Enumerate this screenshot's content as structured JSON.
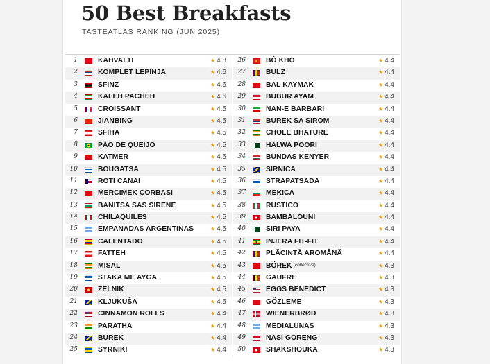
{
  "header": {
    "title": "50 Best Breakfasts",
    "subtitle": "TASTEATLAS RANKING (JUN 2025)"
  },
  "star_color": "#e5a00d",
  "ranking": [
    {
      "rank": "1",
      "name": "KAHVALTI",
      "rating": "4.8",
      "flag": "turkey"
    },
    {
      "rank": "2",
      "name": "KOMPLET LEPINJA",
      "rating": "4.6",
      "flag": "serbia"
    },
    {
      "rank": "3",
      "name": "SFINZ",
      "rating": "4.6",
      "flag": "libya"
    },
    {
      "rank": "4",
      "name": "KALEH PACHEH",
      "rating": "4.6",
      "flag": "iran"
    },
    {
      "rank": "5",
      "name": "CROISSANT",
      "rating": "4.5",
      "flag": "france"
    },
    {
      "rank": "6",
      "name": "JIANBING",
      "rating": "4.5",
      "flag": "china"
    },
    {
      "rank": "7",
      "name": "SFIHA",
      "rating": "4.5",
      "flag": "lebanon"
    },
    {
      "rank": "8",
      "name": "PÃO DE QUEIJO",
      "rating": "4.5",
      "flag": "brazil"
    },
    {
      "rank": "9",
      "name": "KATMER",
      "rating": "4.5",
      "flag": "turkey"
    },
    {
      "rank": "10",
      "name": "BOUGATSA",
      "rating": "4.5",
      "flag": "greece"
    },
    {
      "rank": "11",
      "name": "ROTI CANAI",
      "rating": "4.5",
      "flag": "malaysia"
    },
    {
      "rank": "12",
      "name": "MERCIMEK ÇORBASI",
      "rating": "4.5",
      "flag": "turkey"
    },
    {
      "rank": "13",
      "name": "BANITSA SAS SIRENE",
      "rating": "4.5",
      "flag": "bulgaria"
    },
    {
      "rank": "14",
      "name": "CHILAQUILES",
      "rating": "4.5",
      "flag": "mexico"
    },
    {
      "rank": "15",
      "name": "EMPANADAS ARGENTINAS",
      "rating": "4.5",
      "flag": "argentina"
    },
    {
      "rank": "16",
      "name": "CALENTADO",
      "rating": "4.5",
      "flag": "colombia"
    },
    {
      "rank": "17",
      "name": "FATTEH",
      "rating": "4.5",
      "flag": "lebanon"
    },
    {
      "rank": "18",
      "name": "MISAL",
      "rating": "4.5",
      "flag": "india"
    },
    {
      "rank": "19",
      "name": "STAKA ME AYGA",
      "rating": "4.5",
      "flag": "greece"
    },
    {
      "rank": "20",
      "name": "ZELNIK",
      "rating": "4.5",
      "flag": "north-macedonia"
    },
    {
      "rank": "21",
      "name": "KLJUKUŠA",
      "rating": "4.5",
      "flag": "bosnia"
    },
    {
      "rank": "22",
      "name": "CINNAMON ROLLS",
      "rating": "4.4",
      "flag": "usa"
    },
    {
      "rank": "23",
      "name": "PARATHA",
      "rating": "4.4",
      "flag": "india"
    },
    {
      "rank": "24",
      "name": "BUREK",
      "rating": "4.4",
      "flag": "bosnia"
    },
    {
      "rank": "25",
      "name": "SYRNIKI",
      "rating": "4.4",
      "flag": "ukraine"
    },
    {
      "rank": "26",
      "name": "BÒ KHO",
      "rating": "4.4",
      "flag": "vietnam"
    },
    {
      "rank": "27",
      "name": "BULZ",
      "rating": "4.4",
      "flag": "romania"
    },
    {
      "rank": "28",
      "name": "BAL KAYMAK",
      "rating": "4.4",
      "flag": "turkey"
    },
    {
      "rank": "29",
      "name": "BUBUR AYAM",
      "rating": "4.4",
      "flag": "indonesia"
    },
    {
      "rank": "30",
      "name": "NAN-E BARBARI",
      "rating": "4.4",
      "flag": "iran"
    },
    {
      "rank": "31",
      "name": "BUREK SA SIROM",
      "rating": "4.4",
      "flag": "serbia"
    },
    {
      "rank": "32",
      "name": "CHOLE BHATURE",
      "rating": "4.4",
      "flag": "india"
    },
    {
      "rank": "33",
      "name": "HALWA POORI",
      "rating": "4.4",
      "flag": "pakistan"
    },
    {
      "rank": "34",
      "name": "BUNDÁS KENYÉR",
      "rating": "4.4",
      "flag": "hungary"
    },
    {
      "rank": "35",
      "name": "SIRNICA",
      "rating": "4.4",
      "flag": "bosnia"
    },
    {
      "rank": "36",
      "name": "STRAPATSADA",
      "rating": "4.4",
      "flag": "greece"
    },
    {
      "rank": "37",
      "name": "MEKICA",
      "rating": "4.4",
      "flag": "bulgaria"
    },
    {
      "rank": "38",
      "name": "RUSTICO",
      "rating": "4.4",
      "flag": "italy"
    },
    {
      "rank": "39",
      "name": "BAMBALOUNI",
      "rating": "4.4",
      "flag": "tunisia"
    },
    {
      "rank": "40",
      "name": "SIRI PAYA",
      "rating": "4.4",
      "flag": "pakistan"
    },
    {
      "rank": "41",
      "name": "INJERA FIT-FIT",
      "rating": "4.4",
      "flag": "ethiopia"
    },
    {
      "rank": "42",
      "name": "PLĂCINTĂ AROMÂNĂ",
      "rating": "4.4",
      "flag": "romania"
    },
    {
      "rank": "43",
      "name": "BÖREK",
      "note": "(collective)",
      "rating": "4.3",
      "flag": "turkey"
    },
    {
      "rank": "44",
      "name": "GAUFRE",
      "rating": "4.3",
      "flag": "belgium"
    },
    {
      "rank": "45",
      "name": "EGGS BENEDICT",
      "rating": "4.3",
      "flag": "usa"
    },
    {
      "rank": "46",
      "name": "GÖZLEME",
      "rating": "4.3",
      "flag": "turkey"
    },
    {
      "rank": "47",
      "name": "WIENERBRØD",
      "rating": "4.3",
      "flag": "denmark"
    },
    {
      "rank": "48",
      "name": "MEDIALUNAS",
      "rating": "4.3",
      "flag": "argentina"
    },
    {
      "rank": "49",
      "name": "NASI GORENG",
      "rating": "4.3",
      "flag": "indonesia"
    },
    {
      "rank": "50",
      "name": "SHAKSHOUKA",
      "rating": "4.3",
      "flag": "tunisia"
    }
  ]
}
